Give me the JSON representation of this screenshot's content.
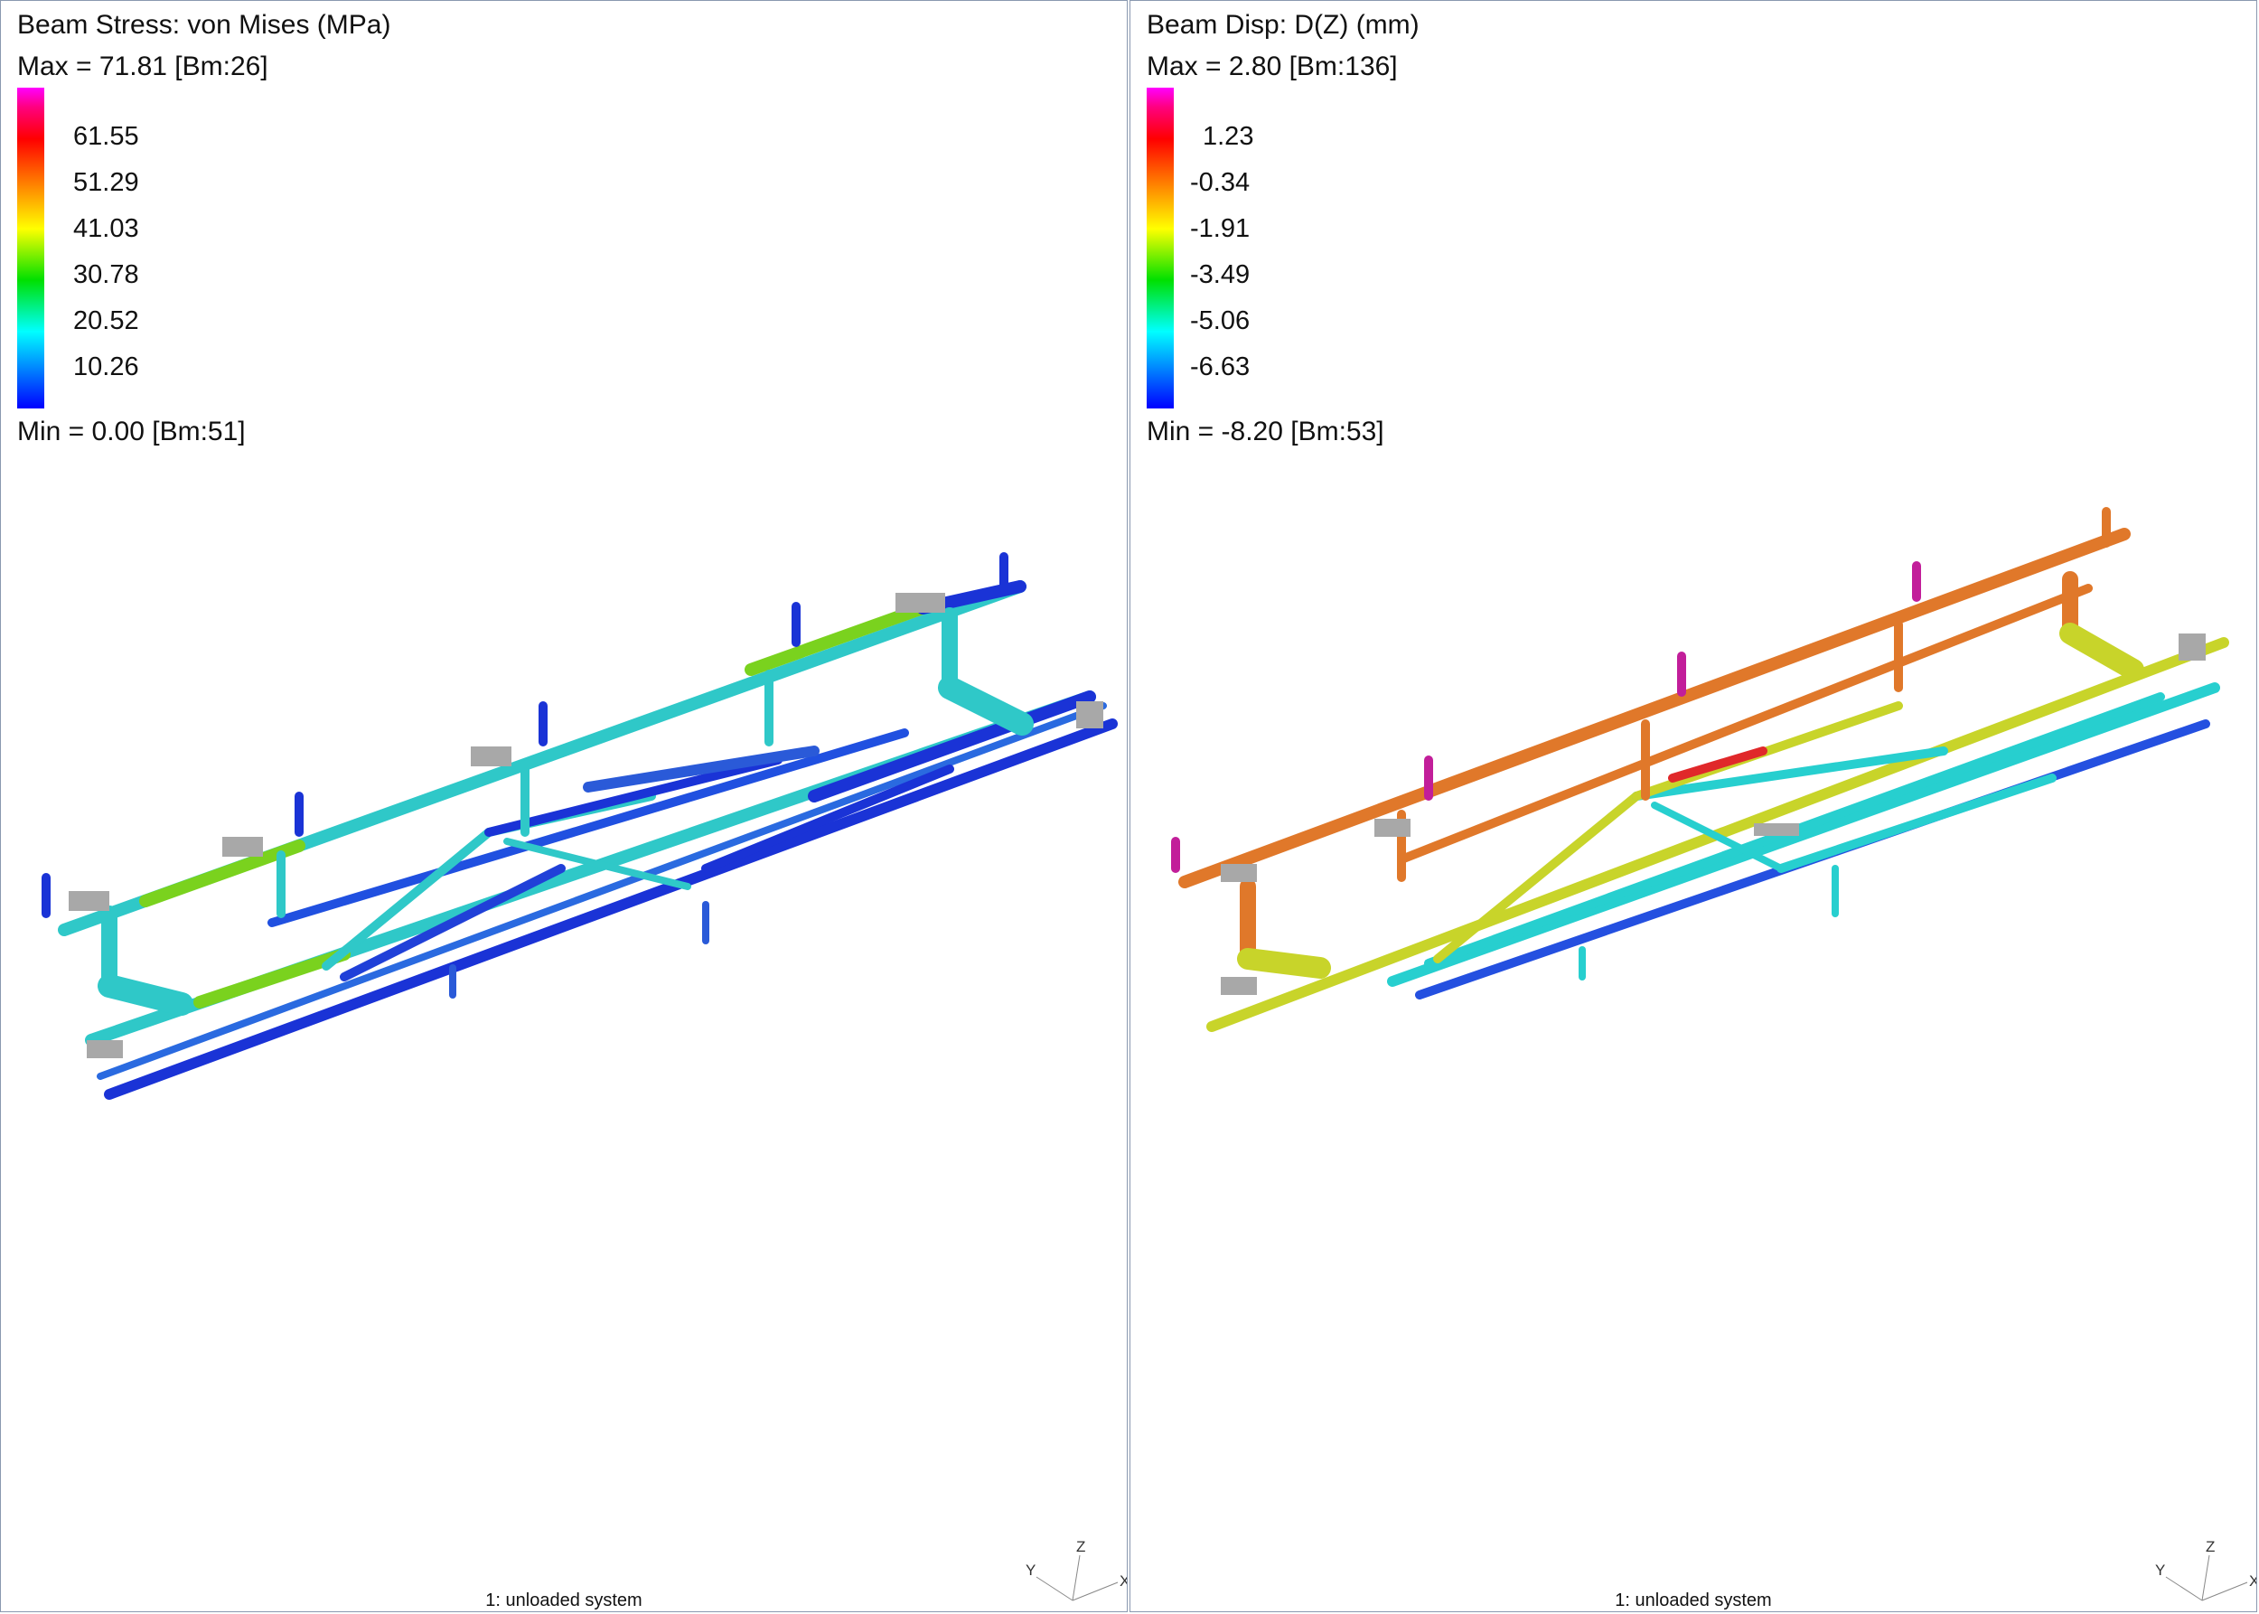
{
  "left": {
    "title": "Beam Stress: von Mises (MPa)",
    "max": "Max = 71.81 [Bm:26]",
    "min": "Min = 0.00 [Bm:51]",
    "ticks": [
      "61.55",
      "51.29",
      "41.03",
      "30.78",
      "20.52",
      "10.26"
    ],
    "status": "1: unloaded system"
  },
  "right": {
    "title": "Beam Disp: D(Z) (mm)",
    "max": "Max = 2.80 [Bm:136]",
    "min": "Min = -8.20 [Bm:53]",
    "ticks": [
      "1.23",
      "-0.34",
      "-1.91",
      "-3.49",
      "-5.06",
      "-6.63"
    ],
    "status": "1: unloaded system"
  },
  "triad": {
    "x": "X",
    "y": "Y",
    "z": "Z"
  },
  "colors": {
    "divider": "#8a99b0",
    "stress_low": "#1a33d6",
    "stress_mid": "#2fc8c8",
    "stress_high": "#7ad21e",
    "disp_orange": "#e0782a",
    "disp_yellow": "#c8d42a",
    "disp_cyan": "#27cfcf",
    "disp_blue": "#2450e0",
    "disp_magenta": "#c21e9a",
    "bracket_grey": "#a8a8a8"
  }
}
